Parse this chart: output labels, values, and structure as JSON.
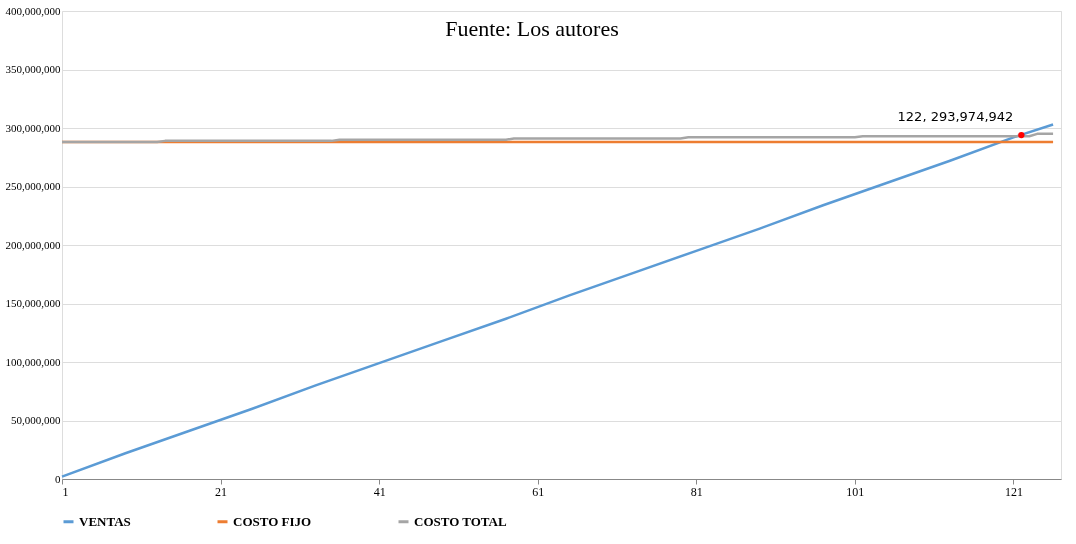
{
  "chart_data": {
    "type": "line",
    "series": [
      {
        "name": "VENTAS",
        "color": "#5b9bd5",
        "x": [
          1,
          9,
          17,
          25,
          33,
          41,
          49,
          57,
          65,
          73,
          81,
          89,
          97,
          105,
          113,
          121,
          126
        ],
        "values": [
          2000000,
          22000000,
          41000000,
          60000000,
          80000000,
          99000000,
          118000000,
          137000000,
          157000000,
          176000000,
          195000000,
          214000000,
          234000000,
          253000000,
          272000000,
          292000000,
          303000000
        ]
      },
      {
        "name": "COSTO FIJO",
        "color": "#ed7d31",
        "x": [
          1,
          126
        ],
        "values": [
          288000000,
          288000000
        ]
      },
      {
        "name": "COSTO TOTAL",
        "color": "#a5a5a5",
        "x": [
          1,
          13,
          14,
          35,
          36,
          57,
          58,
          79,
          80,
          101,
          102,
          123,
          124,
          126
        ],
        "values": [
          288000000,
          288000000,
          289000000,
          289000000,
          290000000,
          290000000,
          291000000,
          291000000,
          292000000,
          292000000,
          293000000,
          293000000,
          295000000,
          295000000
        ]
      }
    ],
    "xlim": [
      1,
      127
    ],
    "xticks": [
      1,
      21,
      41,
      61,
      81,
      101,
      121
    ],
    "ylim": [
      0,
      400000000
    ],
    "yticks": [
      0,
      {
        "value": 50000000,
        "label": "50,000,000"
      },
      {
        "value": 100000000,
        "label": "100,000,000"
      },
      {
        "value": 150000000,
        "label": "150,000,000"
      },
      {
        "value": 200000000,
        "label": "200,000,000"
      },
      {
        "value": 250000000,
        "label": "250,000,000"
      },
      {
        "value": 300000000,
        "label": "300,000,000"
      },
      {
        "value": 350000000,
        "label": "350,000,000"
      },
      {
        "value": 400000000,
        "label": "400,000,000"
      }
    ],
    "grid": "y",
    "legend": "bottom",
    "annotations": [
      "Fuente: Los autores",
      {
        "text": "122, 293,974,942",
        "x": 122,
        "y": 293974942
      }
    ]
  }
}
